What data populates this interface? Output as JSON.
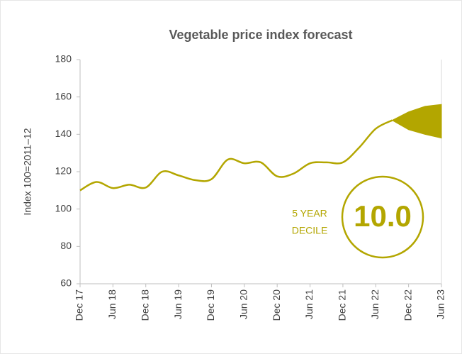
{
  "chart_data": {
    "type": "line",
    "title": "Vegetable price index forecast",
    "y_label": "Index 100=2011–12",
    "categories": [
      "Dec 17",
      null,
      "Jun 18",
      null,
      "Dec 18",
      null,
      "Jun 19",
      null,
      "Dec 19",
      null,
      "Jun 20",
      null,
      "Dec 20",
      null,
      "Jun 21",
      null,
      "Dec 21",
      null,
      "Jun 22",
      null,
      "Dec 22",
      null,
      "Jun 23"
    ],
    "values": [
      110,
      114.5,
      111.2,
      113,
      111.5,
      120,
      118,
      115.5,
      116,
      126.5,
      124.5,
      125,
      117.5,
      119,
      124.5,
      125,
      125,
      133,
      143,
      147.5,
      null,
      null,
      null
    ],
    "band_high": [
      null,
      null,
      null,
      null,
      null,
      null,
      null,
      null,
      null,
      null,
      null,
      null,
      null,
      null,
      null,
      null,
      null,
      null,
      null,
      147.5,
      152,
      155,
      156
    ],
    "band_low": [
      null,
      null,
      null,
      null,
      null,
      null,
      null,
      null,
      null,
      null,
      null,
      null,
      null,
      null,
      null,
      null,
      null,
      null,
      null,
      147.5,
      142.5,
      140,
      138
    ],
    "color": "#b3a600",
    "ylim": [
      60,
      180
    ],
    "yticks": [
      60,
      80,
      100,
      120,
      140,
      160,
      180
    ],
    "annotation": {
      "line1": "5 YEAR",
      "line2": "DECILE",
      "value": "10.0"
    }
  }
}
